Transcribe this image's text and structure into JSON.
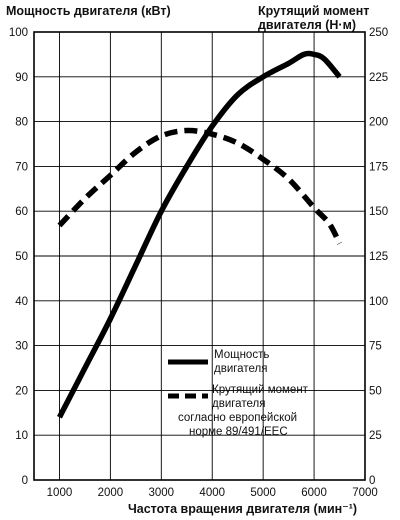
{
  "chart_data": {
    "type": "line",
    "title_left": "Мощность двигателя (кВт)",
    "title_right_lines": [
      "Крутящий момент",
      "двигателя (Н·м)"
    ],
    "xlabel": "Частота вращения двигателя (мин⁻¹)",
    "x_ticks": [
      "1000",
      "2000",
      "3000",
      "4000",
      "5000",
      "6000",
      "7000"
    ],
    "y_left_ticks": [
      "0",
      "10",
      "20",
      "30",
      "40",
      "50",
      "60",
      "70",
      "80",
      "90",
      "100"
    ],
    "y_right_ticks": [
      "0",
      "25",
      "50",
      "75",
      "100",
      "125",
      "150",
      "175",
      "200",
      "225",
      "250"
    ],
    "xlim": [
      500,
      7000
    ],
    "ylim_left": [
      0,
      100
    ],
    "ylim_right": [
      0,
      250
    ],
    "grid": true,
    "legend_position": "bottom-right",
    "series": [
      {
        "name_lines": [
          "Мощность",
          "двигателя"
        ],
        "axis": "left",
        "style": "solid",
        "color": "#000000",
        "x": [
          1000,
          1500,
          2000,
          2500,
          3000,
          3500,
          4000,
          4500,
          5000,
          5500,
          5800,
          6000,
          6200,
          6500
        ],
        "y": [
          14,
          25,
          36,
          48,
          60,
          70,
          79,
          86,
          90,
          93,
          95,
          95,
          94,
          90
        ]
      },
      {
        "name_lines": [
          "Крутящий момент",
          "двигателя",
          "согласно европейской",
          "норме 89/491/EEC"
        ],
        "axis": "right",
        "style": "dashed",
        "color": "#000000",
        "x": [
          1000,
          1500,
          2000,
          2500,
          3000,
          3500,
          4000,
          4500,
          5000,
          5500,
          6000,
          6300,
          6500
        ],
        "y": [
          142,
          157,
          170,
          183,
          192,
          195,
          193,
          188,
          179,
          168,
          152,
          143,
          132
        ]
      }
    ]
  }
}
